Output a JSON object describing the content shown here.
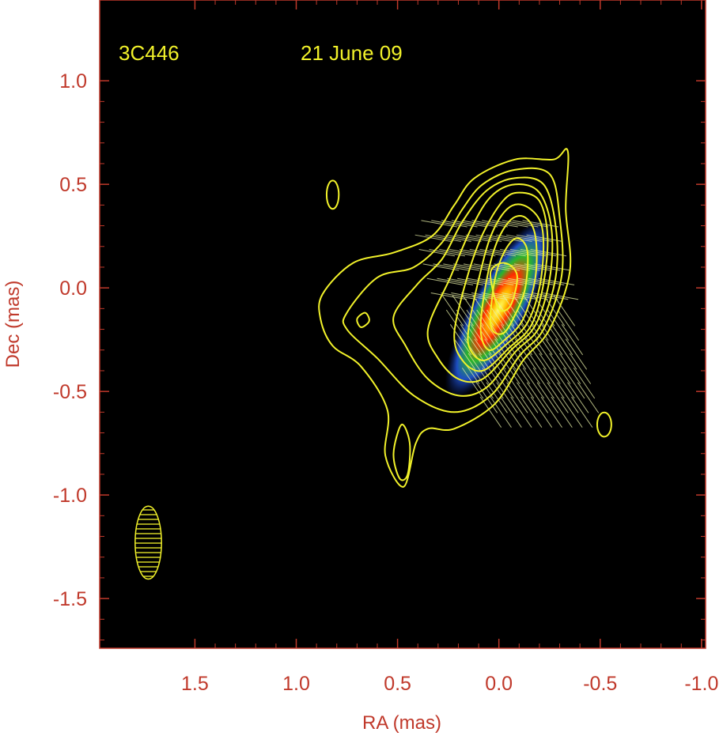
{
  "chart_data": {
    "type": "contour",
    "source": "3C446",
    "date": "21 June 09",
    "xlabel": "RA (mas)",
    "ylabel": "Dec (mas)",
    "xlim": [
      1.97,
      -1.02
    ],
    "ylim": [
      -1.74,
      1.39
    ],
    "x_ticks": [
      1.5,
      1.0,
      0.5,
      0.0,
      -0.5,
      -1.0
    ],
    "x_tick_labels": [
      "1.5",
      "1.0",
      "0.5",
      "0.0",
      "-0.5",
      "-1.0"
    ],
    "y_ticks": [
      1.0,
      0.5,
      0.0,
      -0.5,
      -1.0,
      -1.5
    ],
    "y_tick_labels": [
      "1.0",
      "0.5",
      "0.0",
      "-0.5",
      "-1.0",
      "-1.5"
    ],
    "colors": {
      "plot_background": "#000000",
      "axis_text": "#c0392b",
      "contour": "#f2f22a",
      "annotation": "#f2f22a",
      "polarization_vectors": "#e8f0a8"
    },
    "core": {
      "ra": 0.0,
      "dec": -0.1
    },
    "beam": {
      "ra": 1.73,
      "dec": -1.23,
      "major_mas": 0.36,
      "minor_mas": 0.13,
      "pa_deg": 0
    },
    "jet_contours": [
      {
        "level": 1,
        "points": [
          [
            0.87,
            -0.03
          ],
          [
            0.72,
            0.12
          ],
          [
            0.52,
            0.17
          ],
          [
            0.33,
            0.25
          ],
          [
            0.22,
            0.4
          ],
          [
            0.12,
            0.53
          ],
          [
            -0.08,
            0.62
          ],
          [
            -0.27,
            0.62
          ],
          [
            -0.34,
            0.66
          ],
          [
            -0.33,
            0.38
          ],
          [
            -0.35,
            0.08
          ],
          [
            -0.25,
            -0.2
          ],
          [
            -0.12,
            -0.35
          ],
          [
            0.02,
            -0.56
          ],
          [
            0.22,
            -0.68
          ],
          [
            0.35,
            -0.68
          ],
          [
            0.41,
            -0.75
          ],
          [
            0.47,
            -0.96
          ],
          [
            0.56,
            -0.81
          ],
          [
            0.55,
            -0.59
          ],
          [
            0.68,
            -0.38
          ],
          [
            0.82,
            -0.28
          ],
          [
            0.88,
            -0.15
          ]
        ]
      },
      {
        "level": 2,
        "points": [
          [
            0.75,
            -0.12
          ],
          [
            0.6,
            0.05
          ],
          [
            0.42,
            0.1
          ],
          [
            0.28,
            0.22
          ],
          [
            0.18,
            0.38
          ],
          [
            0.08,
            0.5
          ],
          [
            -0.08,
            0.57
          ],
          [
            -0.25,
            0.55
          ],
          [
            -0.3,
            0.34
          ],
          [
            -0.31,
            0.06
          ],
          [
            -0.22,
            -0.2
          ],
          [
            -0.1,
            -0.33
          ],
          [
            0.04,
            -0.52
          ],
          [
            0.22,
            -0.6
          ],
          [
            0.42,
            -0.52
          ],
          [
            0.6,
            -0.34
          ],
          [
            0.75,
            -0.2
          ]
        ]
      },
      {
        "level": 3,
        "points": [
          [
            0.52,
            -0.14
          ],
          [
            0.4,
            0.02
          ],
          [
            0.28,
            0.14
          ],
          [
            0.18,
            0.32
          ],
          [
            0.06,
            0.47
          ],
          [
            -0.08,
            0.53
          ],
          [
            -0.22,
            0.5
          ],
          [
            -0.28,
            0.3
          ],
          [
            -0.28,
            0.05
          ],
          [
            -0.2,
            -0.19
          ],
          [
            -0.08,
            -0.31
          ],
          [
            0.06,
            -0.48
          ],
          [
            0.2,
            -0.52
          ],
          [
            0.35,
            -0.44
          ],
          [
            0.46,
            -0.28
          ]
        ]
      },
      {
        "level": 4,
        "points": [
          [
            0.35,
            -0.2
          ],
          [
            0.24,
            0.05
          ],
          [
            0.14,
            0.28
          ],
          [
            0.04,
            0.44
          ],
          [
            -0.08,
            0.5
          ],
          [
            -0.2,
            0.46
          ],
          [
            -0.26,
            0.28
          ],
          [
            -0.25,
            0.04
          ],
          [
            -0.18,
            -0.18
          ],
          [
            -0.06,
            -0.3
          ],
          [
            0.08,
            -0.44
          ],
          [
            0.2,
            -0.44
          ],
          [
            0.3,
            -0.34
          ]
        ]
      },
      {
        "level": 5,
        "points": [
          [
            0.22,
            -0.22
          ],
          [
            0.16,
            0.04
          ],
          [
            0.08,
            0.26
          ],
          [
            -0.02,
            0.42
          ],
          [
            -0.1,
            0.46
          ],
          [
            -0.2,
            0.42
          ],
          [
            -0.24,
            0.25
          ],
          [
            -0.22,
            0.02
          ],
          [
            -0.16,
            -0.18
          ],
          [
            -0.05,
            -0.29
          ],
          [
            0.08,
            -0.4
          ],
          [
            0.18,
            -0.35
          ]
        ]
      },
      {
        "level": 6,
        "points": [
          [
            0.15,
            -0.2
          ],
          [
            0.1,
            0.04
          ],
          [
            0.04,
            0.25
          ],
          [
            -0.04,
            0.38
          ],
          [
            -0.12,
            0.4
          ],
          [
            -0.2,
            0.33
          ],
          [
            -0.22,
            0.2
          ],
          [
            -0.2,
            0.0
          ],
          [
            -0.14,
            -0.17
          ],
          [
            -0.04,
            -0.27
          ],
          [
            0.07,
            -0.35
          ],
          [
            0.14,
            -0.3
          ]
        ]
      },
      {
        "level": 7,
        "points": [
          [
            0.09,
            -0.2
          ],
          [
            0.06,
            0.04
          ],
          [
            0.01,
            0.22
          ],
          [
            -0.06,
            0.33
          ],
          [
            -0.13,
            0.34
          ],
          [
            -0.18,
            0.25
          ],
          [
            -0.18,
            0.05
          ],
          [
            -0.12,
            -0.15
          ],
          [
            -0.03,
            -0.25
          ],
          [
            0.05,
            -0.3
          ]
        ]
      },
      {
        "level": 8,
        "points": [
          [
            0.04,
            -0.18
          ],
          [
            0.02,
            0.04
          ],
          [
            -0.03,
            0.18
          ],
          [
            -0.09,
            0.24
          ],
          [
            -0.14,
            0.18
          ],
          [
            -0.13,
            0.0
          ],
          [
            -0.08,
            -0.13
          ],
          [
            -0.02,
            -0.22
          ]
        ]
      },
      {
        "level": 9,
        "points": [
          [
            0.02,
            -0.05
          ],
          [
            0.04,
            0.08
          ],
          [
            -0.03,
            0.12
          ],
          [
            -0.09,
            0.06
          ],
          [
            -0.06,
            -0.08
          ],
          [
            -0.01,
            -0.11
          ]
        ]
      }
    ],
    "inner_blob": {
      "points": [
        [
          0.48,
          -0.66
        ],
        [
          0.52,
          -0.8
        ],
        [
          0.49,
          -0.92
        ],
        [
          0.45,
          -0.9
        ],
        [
          0.44,
          -0.75
        ]
      ]
    },
    "small_loop": {
      "points": [
        [
          0.66,
          -0.12
        ],
        [
          0.7,
          -0.15
        ],
        [
          0.68,
          -0.19
        ],
        [
          0.64,
          -0.16
        ]
      ]
    },
    "isolated_components": [
      {
        "ra": 0.82,
        "dec": 0.45,
        "rx": 0.03,
        "ry": 0.07
      },
      {
        "ra": -0.52,
        "dec": -0.66,
        "rx": 0.035,
        "ry": 0.06
      }
    ]
  }
}
